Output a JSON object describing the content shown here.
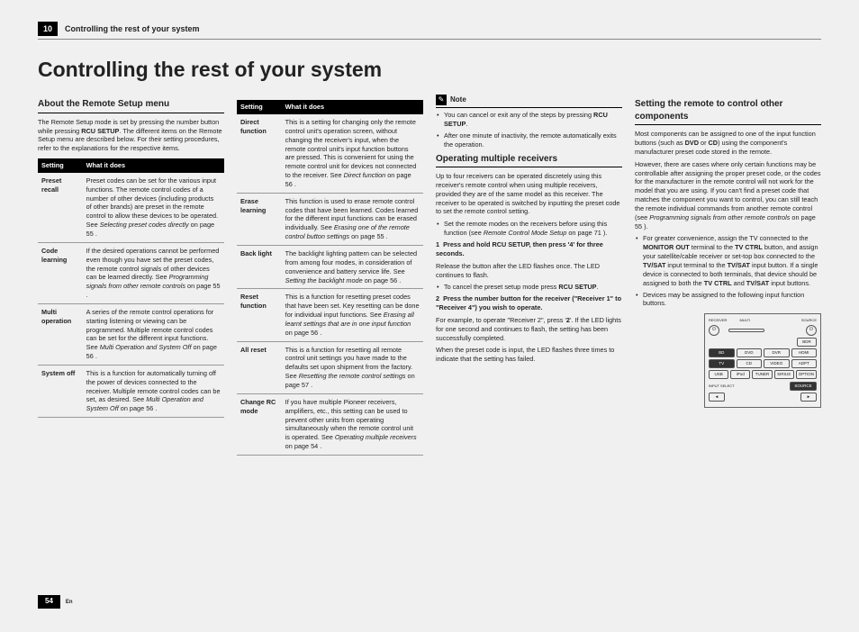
{
  "header": {
    "chapter_num": "10",
    "chapter_title": "Controlling the rest of your system"
  },
  "title": "Controlling the rest of your system",
  "col1": {
    "heading": "About the Remote Setup menu",
    "intro_parts": [
      "The Remote Setup mode is set by pressing the number button while pressing ",
      "RCU SETUP",
      ". The different items on the Remote Setup menu are described below. For their setting procedures, refer to the explanations for the respective items."
    ],
    "th1": "Setting",
    "th2": "What it does",
    "rows": [
      {
        "s": "Preset recall",
        "d_parts": [
          "Preset codes can be set for the various input functions. The remote control codes of a number of other devices (including products of other brands) are preset in the remote control to allow these devices to be operated. See ",
          "Selecting preset codes directly",
          " on page 55 ."
        ]
      },
      {
        "s": "Code learning",
        "d_parts": [
          "If the desired operations cannot be performed even though you have set the preset codes, the remote control signals of other devices can be learned directly. See ",
          "Programming signals from other remote controls",
          " on page 55 ."
        ]
      },
      {
        "s": "Multi operation",
        "d_parts": [
          "A series of the remote control operations for starting listening or viewing can be programmed. Multiple remote control codes can be set for the different input functions. See ",
          "Multi Operation and System Off",
          " on page 56 ."
        ]
      },
      {
        "s": "System off",
        "d_parts": [
          "This is a function for automatically turning off the power of devices connected to the receiver. Multiple remote control codes can be set, as desired. See ",
          "Multi Operation and System Off",
          " on page 56 ."
        ]
      }
    ]
  },
  "col2": {
    "th1": "Setting",
    "th2": "What it does",
    "rows": [
      {
        "s": "Direct function",
        "d_parts": [
          "This is a setting for changing only the remote control unit's operation screen, without changing the receiver's input, when the remote control unit's input function buttons are pressed. This is convenient for using the remote control unit for devices not connected to the receiver. See ",
          "Direct function",
          " on page 56 ."
        ]
      },
      {
        "s": "Erase learning",
        "d_parts": [
          "This function is used to erase remote control codes that have been learned. Codes learned for the different input functions can be erased individually. See ",
          "Erasing one of the remote control button settings",
          " on page 55 ."
        ]
      },
      {
        "s": "Back light",
        "d_parts": [
          "The backlight lighting pattern can be selected from among four modes, in consideration of convenience and battery service life. See ",
          "Setting the backlight mode",
          " on page 56 ."
        ]
      },
      {
        "s": "Reset function",
        "d_parts": [
          "This is a function for resetting preset codes that have been set. Key resetting can be done for individual input functions. See ",
          "Erasing all learnt settings that are in one input function",
          " on page 56 ."
        ]
      },
      {
        "s": "All reset",
        "d_parts": [
          "This is a function for resetting all remote control unit settings you have made to the defaults set upon shipment from the factory. See ",
          "Resetting the remote control settings",
          " on page 57 ."
        ]
      },
      {
        "s": "Change RC mode",
        "d_parts": [
          "If you have multiple Pioneer receivers, amplifiers, etc., this setting can be used to prevent other units from operating simultaneously when the remote control unit is operated. See ",
          "Operating multiple receivers",
          " on page 54 ."
        ]
      }
    ]
  },
  "col3": {
    "note_label": "Note",
    "notes": [
      {
        "parts": [
          "You can cancel or exit any of the steps by pressing ",
          "RCU SETUP",
          "."
        ]
      },
      {
        "parts": [
          "After one minute of inactivity, the remote automatically exits the operation."
        ]
      }
    ],
    "heading": "Operating multiple receivers",
    "intro": "Up to four receivers can be operated discretely using this receiver's remote control when using multiple receivers, provided they are of the same model as this receiver. The receiver to be operated is switched by inputting the preset code to set the remote control setting.",
    "bullet1_parts": [
      "Set the remote modes on the receivers before using this function (see ",
      "Remote Control Mode Setup",
      " on page 71 )."
    ],
    "step1_num": "1",
    "step1_bold": "Press and hold RCU SETUP, then press '4' for three seconds.",
    "step1_text": "Release the button after the LED flashes once. The LED continues to flash.",
    "step1_bullet_parts": [
      "To cancel the preset setup mode press ",
      "RCU SETUP",
      "."
    ],
    "step2_num": "2",
    "step2_bold": "Press the number button for the receiver (\"Receiver 1\" to \"Receiver 4\") you wish to operate.",
    "step2_text_parts": [
      "For example, to operate \"Receiver 2\", press '",
      "2",
      "'. If the LED lights for one second and continues to flash, the setting has been successfully completed."
    ],
    "step2_text2": "When the preset code is input, the LED flashes three times to indicate that the setting has failed."
  },
  "col4": {
    "heading": "Setting the remote to control other components",
    "p1_parts": [
      "Most components can be assigned to one of the input function buttons (such as ",
      "DVD",
      " or ",
      "CD",
      ") using the component's manufacturer preset code stored in the remote."
    ],
    "p2_parts": [
      "However, there are cases where only certain functions may be controllable after assigning the proper preset code, or the codes for the manufacturer in the remote control will not work for the model that you are using. If you can't find a preset code that matches the component you want to control, you can still teach the remote individual commands from another remote control (see ",
      "Programming signals from other remote controls",
      " on page 55 )."
    ],
    "bullets": [
      {
        "parts": [
          "For greater convenience, assign the TV connected to the ",
          "MONITOR OUT",
          " terminal to the ",
          "TV CTRL",
          " button, and assign your satellite/cable receiver or set-top box connected to the ",
          "TV/SAT",
          " input terminal to the ",
          "TV/SAT",
          " input button. If a single device is connected to both terminals, that device should be assigned to both the ",
          "TV CTRL",
          " and ",
          "TV/SAT",
          " input buttons."
        ]
      },
      {
        "parts": [
          "Devices may be assigned to the following input function buttons."
        ]
      }
    ],
    "remote": {
      "top_left": "RECEIVER",
      "top_mid": "MULTI",
      "top_right": "SOURCE",
      "row_bdr": "BDR",
      "r1": [
        "BD",
        "DVD",
        "DVR",
        "HDMI"
      ],
      "r2": [
        "TV",
        "CD",
        "VIDEO",
        "ADPT"
      ],
      "r3": [
        "USB",
        "iPod",
        "TUNER",
        "SIRIUS",
        "OPTION"
      ],
      "bottom_left": "INPUT SELECT",
      "bottom_right": "SOURCE"
    }
  },
  "footer": {
    "page": "54",
    "lang": "En"
  }
}
